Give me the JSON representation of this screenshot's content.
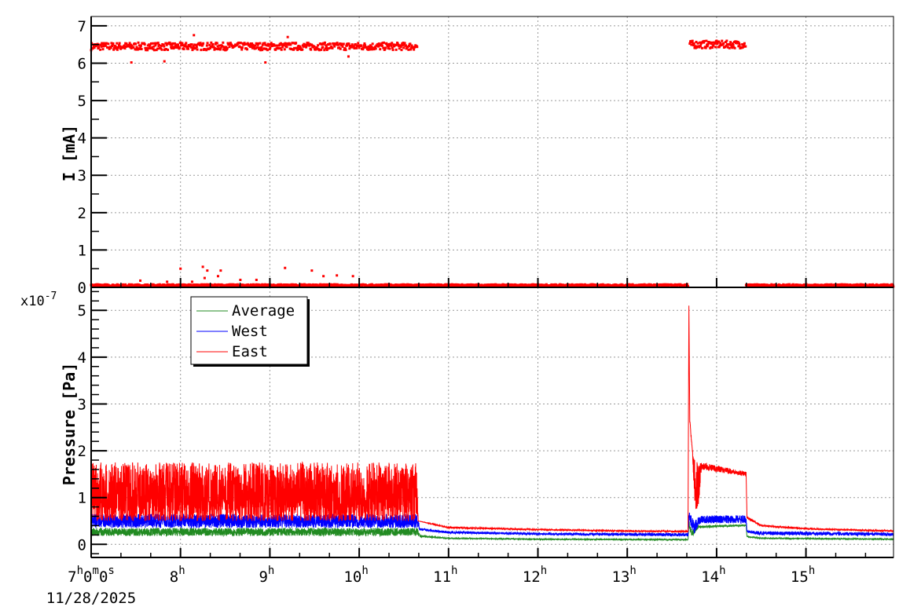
{
  "chart_data": [
    {
      "type": "scatter",
      "ylabel": "I [mA]",
      "ylim": [
        0,
        7.25
      ],
      "xlim_hours": [
        7,
        15.98
      ],
      "yticks": [
        "0",
        "1",
        "2",
        "3",
        "4",
        "5",
        "6",
        "7"
      ],
      "grid": true,
      "series": [
        {
          "color": "#ff0000",
          "segments": [
            {
              "from_hour": 7.0,
              "to_hour": 10.65,
              "level": 6.45,
              "spread": 0.1
            },
            {
              "from_hour": 13.7,
              "to_hour": 14.33,
              "level": 6.5,
              "spread": 0.1
            },
            {
              "from_hour": 7.0,
              "to_hour": 13.68,
              "level": 0.05,
              "spread": 0.03
            },
            {
              "from_hour": 14.33,
              "to_hour": 15.98,
              "level": 0.05,
              "spread": 0.03
            }
          ],
          "outliers": [
            [
              7.45,
              6.02
            ],
            [
              7.82,
              6.05
            ],
            [
              8.15,
              6.75
            ],
            [
              8.95,
              6.02
            ],
            [
              9.2,
              6.7
            ],
            [
              9.88,
              6.18
            ],
            [
              8.0,
              0.5
            ],
            [
              8.25,
              0.55
            ],
            [
              8.3,
              0.45
            ],
            [
              8.45,
              0.45
            ],
            [
              8.27,
              0.25
            ],
            [
              8.42,
              0.3
            ],
            [
              9.17,
              0.52
            ],
            [
              9.47,
              0.45
            ],
            [
              9.6,
              0.3
            ],
            [
              9.75,
              0.32
            ],
            [
              9.93,
              0.3
            ],
            [
              8.67,
              0.2
            ],
            [
              8.85,
              0.2
            ],
            [
              7.55,
              0.18
            ],
            [
              7.85,
              0.15
            ],
            [
              8.13,
              0.15
            ]
          ]
        }
      ]
    },
    {
      "type": "line",
      "ylabel": "Pressure [Pa]",
      "exponent_label": "x10",
      "exponent": "-7",
      "ylim": [
        -0.28,
        5.49
      ],
      "yticks": [
        "0",
        "1",
        "2",
        "3",
        "4",
        "5"
      ],
      "grid": true,
      "legend_position": "top-left",
      "series": [
        {
          "name": "Average",
          "color": "#228b22",
          "envelope": [
            [
              7,
              0.18,
              0.35
            ],
            [
              10.65,
              0.18,
              0.35
            ],
            [
              10.68,
              0.15,
              0.2
            ],
            [
              11,
              0.12,
              0.14
            ],
            [
              12,
              0.1,
              0.12
            ],
            [
              13.68,
              0.09,
              0.11
            ],
            [
              13.69,
              0.3,
              0.6
            ],
            [
              13.72,
              0.15,
              0.3
            ],
            [
              13.8,
              0.35,
              0.4
            ],
            [
              14.33,
              0.39,
              0.42
            ],
            [
              14.34,
              0.15,
              0.18
            ],
            [
              14.5,
              0.12,
              0.14
            ],
            [
              15.98,
              0.1,
              0.12
            ]
          ]
        },
        {
          "name": "West",
          "color": "#0000ff",
          "envelope": [
            [
              7,
              0.35,
              0.65
            ],
            [
              10.65,
              0.35,
              0.65
            ],
            [
              10.68,
              0.3,
              0.35
            ],
            [
              11,
              0.23,
              0.28
            ],
            [
              12,
              0.2,
              0.25
            ],
            [
              13.68,
              0.17,
              0.24
            ],
            [
              13.69,
              0.5,
              0.7
            ],
            [
              13.75,
              0.2,
              0.5
            ],
            [
              13.82,
              0.45,
              0.62
            ],
            [
              14.33,
              0.45,
              0.62
            ],
            [
              14.34,
              0.25,
              0.3
            ],
            [
              14.5,
              0.2,
              0.28
            ],
            [
              15.98,
              0.18,
              0.25
            ]
          ]
        },
        {
          "name": "East",
          "color": "#ff0000",
          "envelope": [
            [
              7,
              0.5,
              1.75
            ],
            [
              10.65,
              0.5,
              1.75
            ],
            [
              10.66,
              0.5,
              0.5
            ],
            [
              11,
              0.34,
              0.38
            ],
            [
              12,
              0.3,
              0.33
            ],
            [
              13,
              0.27,
              0.3
            ],
            [
              13.68,
              0.26,
              0.29
            ],
            [
              13.69,
              5.1,
              5.1
            ],
            [
              13.7,
              2.6,
              2.7
            ],
            [
              13.73,
              1.9,
              2.0
            ],
            [
              13.76,
              0.6,
              1.8
            ],
            [
              13.8,
              0.8,
              1.75
            ],
            [
              13.83,
              1.6,
              1.75
            ],
            [
              14.33,
              1.45,
              1.55
            ],
            [
              14.34,
              0.55,
              0.6
            ],
            [
              14.5,
              0.38,
              0.42
            ],
            [
              15,
              0.32,
              0.35
            ],
            [
              15.98,
              0.27,
              0.3
            ]
          ]
        }
      ]
    }
  ],
  "xaxis": {
    "first_label": {
      "h": "7",
      "hs": "h",
      "m": "0",
      "ms": "m",
      "s": "0",
      "ss": "s"
    },
    "date": "11/28/2025",
    "labels": [
      {
        "v": "8",
        "u": "h"
      },
      {
        "v": "9",
        "u": "h"
      },
      {
        "v": "10",
        "u": "h"
      },
      {
        "v": "11",
        "u": "h"
      },
      {
        "v": "12",
        "u": "h"
      },
      {
        "v": "13",
        "u": "h"
      },
      {
        "v": "14",
        "u": "h"
      },
      {
        "v": "15",
        "u": "h"
      }
    ]
  },
  "legend": [
    "Average",
    "West",
    "East"
  ]
}
